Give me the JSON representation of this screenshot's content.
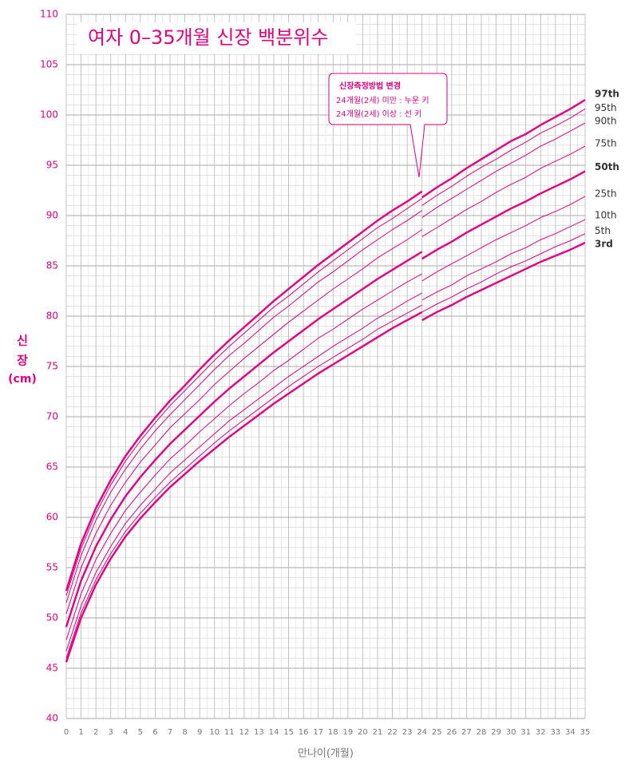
{
  "chart_data": {
    "type": "line",
    "title": "여자 0–35개월 신장 백분위수",
    "y_label": [
      "신",
      "장",
      "(cm)"
    ],
    "x_label": "만나이(개월)",
    "annotation": [
      "신장측정방법 변경",
      "24개월(2세) 미만 : 누운 키",
      "24개월(2세) 이상 : 선 키"
    ],
    "x": [
      0,
      1,
      2,
      3,
      4,
      5,
      6,
      7,
      8,
      9,
      10,
      11,
      12,
      13,
      14,
      15,
      16,
      17,
      18,
      19,
      20,
      21,
      22,
      23,
      24,
      24,
      24,
      25,
      26,
      27,
      28,
      29,
      30,
      31,
      32,
      33,
      34,
      35
    ],
    "series": [
      {
        "name": "97th",
        "color": "#e4007f",
        "width": 2.4,
        "values": [
          52.7,
          57.4,
          60.9,
          63.7,
          66.1,
          68.1,
          69.9,
          71.6,
          73.1,
          74.7,
          76.2,
          77.6,
          78.9,
          80.2,
          81.5,
          82.7,
          83.9,
          85.1,
          86.2,
          87.3,
          88.4,
          89.5,
          90.5,
          91.4,
          92.4,
          null,
          91.8,
          92.8,
          93.7,
          94.7,
          95.6,
          96.5,
          97.4,
          98.1,
          99.0,
          99.8,
          100.6,
          101.5
        ]
      },
      {
        "name": "95th",
        "color": "#e4007f",
        "width": 1,
        "values": [
          52.2,
          56.9,
          60.4,
          63.2,
          65.6,
          67.6,
          69.4,
          71.1,
          72.6,
          74.1,
          75.6,
          77.0,
          78.3,
          79.6,
          80.9,
          82.0,
          83.2,
          84.4,
          85.5,
          86.6,
          87.7,
          88.8,
          89.7,
          90.7,
          91.7,
          null,
          91.0,
          92.0,
          92.9,
          93.9,
          94.8,
          95.6,
          96.5,
          97.3,
          98.2,
          98.9,
          99.7,
          100.6
        ]
      },
      {
        "name": "90th",
        "color": "#e4007f",
        "width": 1,
        "values": [
          51.5,
          56.2,
          59.7,
          62.5,
          64.8,
          66.8,
          68.6,
          70.2,
          71.7,
          73.2,
          74.7,
          76.1,
          77.3,
          78.6,
          79.9,
          81.0,
          82.2,
          83.4,
          84.4,
          85.5,
          86.6,
          87.6,
          88.6,
          89.5,
          90.5,
          null,
          89.8,
          90.8,
          91.7,
          92.6,
          93.5,
          94.4,
          95.2,
          96.0,
          96.9,
          97.6,
          98.4,
          99.2
        ]
      },
      {
        "name": "75th",
        "color": "#e4007f",
        "width": 1,
        "values": [
          50.4,
          55.0,
          58.4,
          61.2,
          63.5,
          65.5,
          67.2,
          68.9,
          70.3,
          71.7,
          73.2,
          74.5,
          75.8,
          77.0,
          78.2,
          79.4,
          80.5,
          81.6,
          82.7,
          83.7,
          84.7,
          85.8,
          86.7,
          87.6,
          88.6,
          null,
          87.9,
          88.8,
          89.7,
          90.6,
          91.4,
          92.3,
          93.1,
          93.8,
          94.7,
          95.4,
          96.1,
          96.9
        ]
      },
      {
        "name": "50th",
        "color": "#e4007f",
        "width": 2.4,
        "values": [
          49.1,
          53.7,
          57.1,
          59.8,
          62.1,
          64.0,
          65.7,
          67.3,
          68.7,
          70.1,
          71.5,
          72.8,
          74.0,
          75.2,
          76.4,
          77.5,
          78.6,
          79.7,
          80.7,
          81.7,
          82.7,
          83.7,
          84.6,
          85.5,
          86.4,
          null,
          85.7,
          86.6,
          87.4,
          88.3,
          89.1,
          89.9,
          90.7,
          91.4,
          92.2,
          92.9,
          93.6,
          94.4
        ]
      },
      {
        "name": "25th",
        "color": "#e4007f",
        "width": 1,
        "values": [
          47.8,
          52.4,
          55.8,
          58.4,
          60.7,
          62.5,
          64.2,
          65.8,
          67.1,
          68.5,
          69.8,
          71.1,
          72.3,
          73.4,
          74.6,
          75.6,
          76.7,
          77.8,
          78.7,
          79.7,
          80.7,
          81.6,
          82.5,
          83.4,
          84.2,
          null,
          83.5,
          84.4,
          85.2,
          86.0,
          86.8,
          87.6,
          88.3,
          89.0,
          89.8,
          90.4,
          91.1,
          91.9
        ]
      },
      {
        "name": "10th",
        "color": "#e4007f",
        "width": 1,
        "values": [
          46.7,
          51.2,
          54.5,
          57.1,
          59.4,
          61.2,
          62.8,
          64.4,
          65.7,
          67.0,
          68.3,
          69.6,
          70.7,
          71.8,
          72.9,
          74.0,
          75.0,
          76.0,
          77.0,
          77.9,
          78.8,
          79.8,
          80.6,
          81.5,
          82.3,
          null,
          81.6,
          82.4,
          83.1,
          84.0,
          84.7,
          85.4,
          86.2,
          86.8,
          87.6,
          88.2,
          88.9,
          89.6
        ]
      },
      {
        "name": "5th",
        "color": "#e4007f",
        "width": 1,
        "values": [
          46.0,
          50.5,
          53.8,
          56.4,
          58.6,
          60.4,
          62.0,
          63.5,
          64.8,
          66.1,
          67.4,
          68.6,
          69.7,
          70.8,
          71.9,
          73.0,
          74.0,
          75.0,
          75.9,
          76.8,
          77.7,
          78.7,
          79.5,
          80.3,
          81.1,
          null,
          80.4,
          81.2,
          81.9,
          82.7,
          83.4,
          84.2,
          84.9,
          85.5,
          86.2,
          86.9,
          87.5,
          88.2
        ]
      },
      {
        "name": "3rd",
        "color": "#e4007f",
        "width": 2.4,
        "values": [
          45.6,
          50.0,
          53.3,
          55.9,
          58.1,
          59.9,
          61.5,
          63.0,
          64.3,
          65.6,
          66.8,
          68.0,
          69.1,
          70.2,
          71.3,
          72.3,
          73.3,
          74.3,
          75.2,
          76.1,
          77.0,
          77.9,
          78.8,
          79.6,
          80.4,
          null,
          79.6,
          80.4,
          81.1,
          81.9,
          82.6,
          83.3,
          84.0,
          84.7,
          85.4,
          86.0,
          86.6,
          87.3
        ]
      }
    ],
    "xlim": [
      0,
      35
    ],
    "xticks": [
      0,
      1,
      2,
      3,
      4,
      5,
      6,
      7,
      8,
      9,
      10,
      11,
      12,
      13,
      14,
      15,
      16,
      17,
      18,
      19,
      20,
      21,
      22,
      23,
      24,
      25,
      26,
      27,
      28,
      29,
      30,
      31,
      32,
      33,
      34,
      35
    ],
    "ylim": [
      40,
      110
    ],
    "yticks": [
      40,
      45,
      50,
      55,
      60,
      65,
      70,
      75,
      80,
      85,
      90,
      95,
      100,
      105,
      110
    ],
    "grid": true
  }
}
